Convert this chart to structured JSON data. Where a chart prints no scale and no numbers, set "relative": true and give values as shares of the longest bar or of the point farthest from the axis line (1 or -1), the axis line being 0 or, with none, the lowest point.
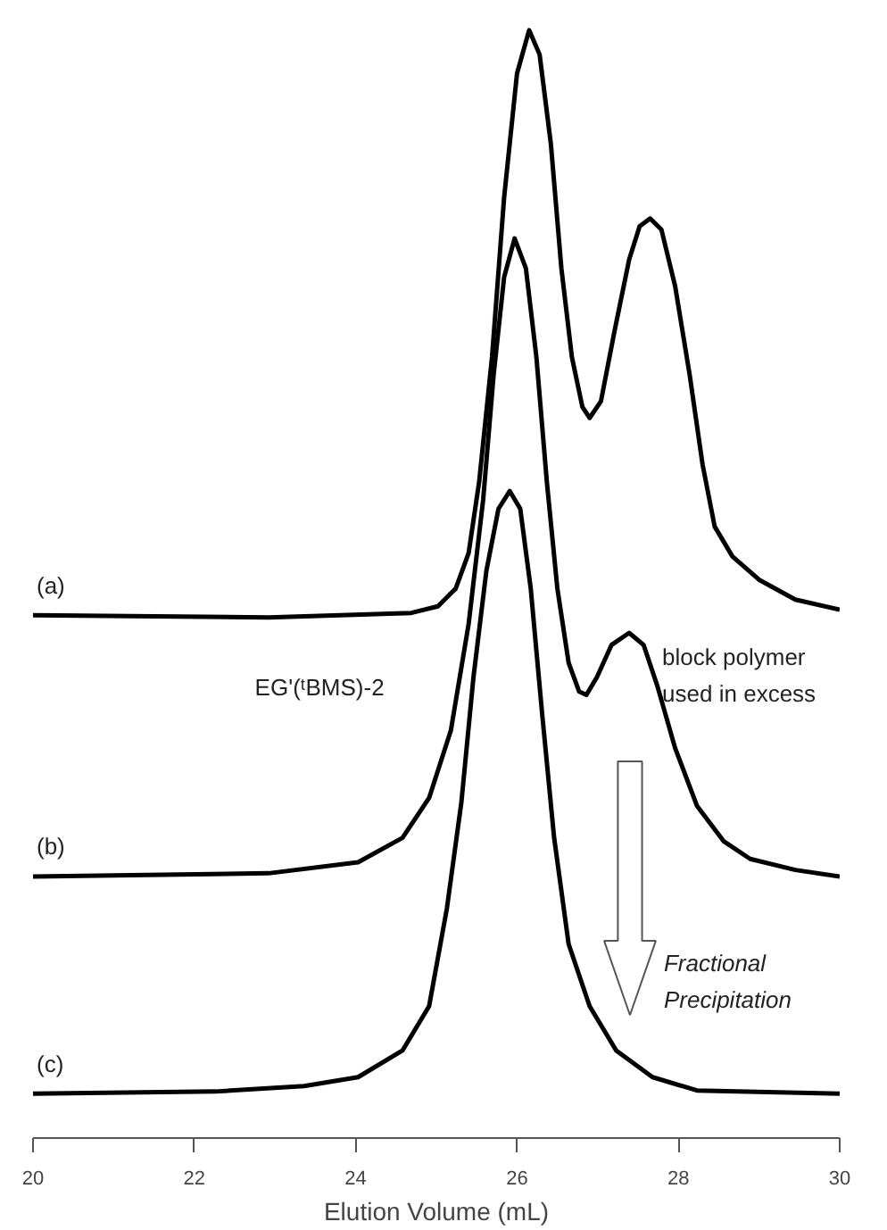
{
  "chart_data": {
    "type": "line",
    "relative": true,
    "xlabel": "Elution Volume (mL)",
    "xlim": [
      20,
      30
    ],
    "xticks": [
      20,
      22,
      24,
      26,
      28,
      30
    ],
    "grid": false,
    "legend": false,
    "marker": "none",
    "line_style": "solid",
    "annotations": [
      "EG'(ᵗBMS)-2",
      "block polymer used in excess",
      "Fractional Precipitation"
    ],
    "series": [
      {
        "name": "(a)",
        "color": "#000000",
        "x": [
          20.0,
          22.92,
          24.69,
          25.02,
          25.24,
          25.4,
          25.53,
          25.69,
          25.84,
          26.0,
          26.15,
          26.28,
          26.42,
          26.55,
          26.68,
          26.81,
          26.9,
          27.04,
          27.21,
          27.39,
          27.52,
          27.65,
          27.79,
          27.96,
          28.14,
          28.3,
          28.45,
          28.67,
          29.0,
          29.45,
          30.0
        ],
        "values": [
          0.472,
          0.47,
          0.474,
          0.48,
          0.496,
          0.528,
          0.592,
          0.705,
          0.849,
          0.961,
          1.0,
          0.978,
          0.897,
          0.785,
          0.705,
          0.66,
          0.65,
          0.665,
          0.729,
          0.793,
          0.823,
          0.83,
          0.82,
          0.769,
          0.689,
          0.608,
          0.552,
          0.525,
          0.504,
          0.486,
          0.477
        ]
      },
      {
        "name": "(b)",
        "color": "#000000",
        "x": [
          20.0,
          22.92,
          24.03,
          24.58,
          24.91,
          25.18,
          25.4,
          25.58,
          25.71,
          25.84,
          25.97,
          26.11,
          26.24,
          26.37,
          26.5,
          26.64,
          26.77,
          26.86,
          26.99,
          27.17,
          27.39,
          27.57,
          27.74,
          27.96,
          28.23,
          28.56,
          28.89,
          29.45,
          30.0
        ],
        "values": [
          0.236,
          0.239,
          0.249,
          0.271,
          0.307,
          0.368,
          0.464,
          0.576,
          0.689,
          0.777,
          0.812,
          0.785,
          0.705,
          0.592,
          0.496,
          0.429,
          0.403,
          0.4,
          0.416,
          0.445,
          0.456,
          0.445,
          0.408,
          0.352,
          0.3,
          0.268,
          0.252,
          0.242,
          0.236
        ]
      },
      {
        "name": "(c)",
        "color": "#000000",
        "x": [
          20.0,
          22.26,
          23.36,
          24.03,
          24.58,
          24.91,
          25.13,
          25.31,
          25.46,
          25.62,
          25.77,
          25.91,
          26.04,
          26.17,
          26.31,
          26.46,
          26.64,
          26.9,
          27.23,
          27.68,
          28.23,
          30.0
        ],
        "values": [
          0.04,
          0.042,
          0.047,
          0.055,
          0.079,
          0.119,
          0.207,
          0.303,
          0.416,
          0.512,
          0.568,
          0.584,
          0.568,
          0.496,
          0.384,
          0.271,
          0.175,
          0.119,
          0.079,
          0.055,
          0.043,
          0.04
        ]
      }
    ]
  }
}
